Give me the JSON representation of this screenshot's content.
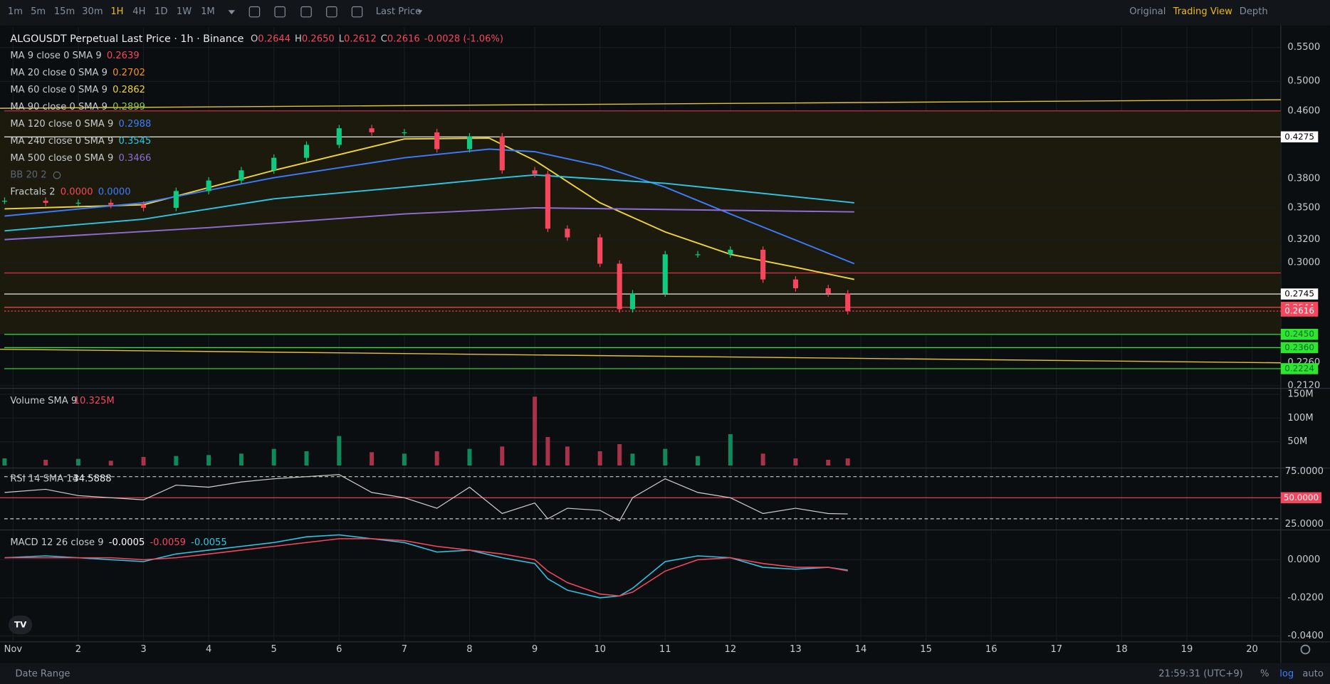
{
  "toolbar": {
    "intervals": [
      "1m",
      "5m",
      "15m",
      "30m",
      "1H",
      "4H",
      "1D",
      "1W",
      "1M"
    ],
    "active_interval": 4,
    "price_type": "Last Price",
    "views": [
      "Original",
      "Trading View",
      "Depth"
    ],
    "active_view": 1
  },
  "legend": {
    "title": "ALGOUSDT Perpetual Last Price · 1h · Binance",
    "ohlc": [
      {
        "key": "O",
        "value": "0.2644"
      },
      {
        "key": "H",
        "value": "0.2650"
      },
      {
        "key": "L",
        "value": "0.2612"
      },
      {
        "key": "C",
        "value": "0.2616"
      }
    ],
    "change": "-0.0028 (-1.06%)",
    "indicators": [
      {
        "name": "MA 9 close 0 SMA 9",
        "values": [
          "0.2639"
        ],
        "colors": [
          "#f6465d"
        ]
      },
      {
        "name": "MA 20 close 0 SMA 9",
        "values": [
          "0.2702"
        ],
        "colors": [
          "#f7931a"
        ]
      },
      {
        "name": "MA 60 close 0 SMA 9",
        "values": [
          "0.2862"
        ],
        "colors": [
          "#f0d43a"
        ]
      },
      {
        "name": "MA 90 close 0 SMA 9",
        "values": [
          "0.2899"
        ],
        "colors": [
          "#8bc34a"
        ]
      },
      {
        "name": "MA 120 close 0 SMA 9",
        "values": [
          "0.2988"
        ],
        "colors": [
          "#3d7cff"
        ]
      },
      {
        "name": "MA 240 close 0 SMA 9",
        "values": [
          "0.3545"
        ],
        "colors": [
          "#2ec6e6"
        ]
      },
      {
        "name": "MA 500 close 0 SMA 9",
        "values": [
          "0.3466"
        ],
        "colors": [
          "#8e6dd8"
        ]
      },
      {
        "name": "BB 20 2",
        "values": [],
        "colors": []
      },
      {
        "name": "Fractals 2",
        "values": [
          "0.0000",
          "0.0000"
        ],
        "colors": [
          "#f6465d",
          "#3d7cff"
        ]
      }
    ]
  },
  "x_axis": {
    "xlim": [
      0.8,
      20.44
    ],
    "xticks": [
      {
        "value": 1,
        "label": "Nov"
      },
      2,
      3,
      4,
      5,
      6,
      7,
      8,
      9,
      10,
      11,
      12,
      13,
      14,
      15,
      16,
      17,
      18,
      19,
      20
    ]
  },
  "price_pane": {
    "type": "candlestick",
    "log_scale": true,
    "ylim": [
      0.2104,
      0.5825
    ],
    "yticks": [
      {
        "value": 0.55,
        "label": "0.5500"
      },
      {
        "value": 0.5,
        "label": "0.5000"
      },
      {
        "value": 0.46,
        "label": "0.4600"
      },
      {
        "value": 0.38,
        "label": "0.3800"
      },
      {
        "value": 0.35,
        "label": "0.3500"
      },
      {
        "value": 0.32,
        "label": "0.3200"
      },
      {
        "value": 0.3,
        "label": "0.3000"
      },
      {
        "value": 0.212,
        "label": "0.2120"
      }
    ],
    "x": [
      0.87,
      1.5,
      2,
      2.5,
      3,
      3.5,
      4,
      4.5,
      5,
      5.5,
      6,
      6.5,
      7,
      7.5,
      8,
      8.5,
      9,
      9.2,
      9.5,
      10,
      10.3,
      10.5,
      11,
      11.5,
      12,
      12.5,
      13,
      13.5,
      13.8
    ],
    "close": [
      0.357,
      0.355,
      0.355,
      0.353,
      0.35,
      0.367,
      0.378,
      0.389,
      0.403,
      0.418,
      0.438,
      0.433,
      0.433,
      0.413,
      0.428,
      0.389,
      0.385,
      0.33,
      0.322,
      0.299,
      0.263,
      0.275,
      0.307,
      0.307,
      0.311,
      0.286,
      0.279,
      0.275,
      0.2616
    ],
    "up_color": "#0ecb81",
    "down_color": "#f6465d",
    "ma_lines": [
      {
        "color": "#f0d43a",
        "x": [
          0.87,
          3,
          5,
          7,
          8.3,
          9,
          10,
          11,
          12,
          13,
          13.9
        ],
        "values": [
          0.349,
          0.353,
          0.389,
          0.425,
          0.426,
          0.4,
          0.355,
          0.327,
          0.307,
          0.296,
          0.286
        ]
      },
      {
        "color": "#3d7cff",
        "x": [
          0.87,
          3,
          5,
          7,
          8.3,
          9,
          10,
          11,
          12,
          13.9
        ],
        "values": [
          0.342,
          0.355,
          0.381,
          0.403,
          0.413,
          0.41,
          0.394,
          0.371,
          0.344,
          0.299
        ]
      },
      {
        "color": "#2ec6e6",
        "x": [
          0.87,
          3,
          5,
          7,
          8.5,
          9,
          11,
          13.9
        ],
        "values": [
          0.328,
          0.339,
          0.359,
          0.371,
          0.381,
          0.384,
          0.375,
          0.355
        ]
      },
      {
        "color": "#8e6dd8",
        "x": [
          0.87,
          4,
          7,
          9,
          13.9
        ],
        "values": [
          0.32,
          0.331,
          0.344,
          0.35,
          0.346
        ]
      }
    ],
    "levels": [
      {
        "value": 0.46,
        "color": "#d9304a"
      },
      {
        "value": 0.4275,
        "label": "0.4275",
        "color": "#ffffff"
      },
      {
        "value": 0.2913,
        "color": "#d9304a"
      },
      {
        "value": 0.2745,
        "label": "0.2745",
        "color": "#ffffff"
      },
      {
        "value": 0.2644,
        "label": "0.2644",
        "color": "#f6465d"
      },
      {
        "value": 0.2616,
        "label": "0.2616",
        "color": "#f6465d"
      },
      {
        "value": 0.245,
        "label": "0.2450",
        "color": "#2ee62e"
      },
      {
        "value": 0.236,
        "label": "0.2360",
        "color": "#2ee62e"
      },
      {
        "value": 0.2224,
        "label": "0.2224",
        "color": "#2ee62e"
      }
    ],
    "trendlines": [
      {
        "color": "#e6c229",
        "x": [
          0.8,
          20.44
        ],
        "values": [
          0.4634,
          0.4747
        ]
      },
      {
        "color": "#e6c229",
        "x": [
          0.8,
          20.44
        ],
        "values": [
          0.2349,
          0.2261
        ],
        "end_label": "0.2260"
      }
    ]
  },
  "volume_pane": {
    "type": "bar",
    "title": "Volume SMA 9",
    "value_label": "10.325M",
    "ylim": [
      0,
      162.5
    ],
    "yticks": [
      {
        "value": 150,
        "label": "150M"
      },
      {
        "value": 100,
        "label": "100M"
      },
      {
        "value": 50,
        "label": "50M"
      }
    ],
    "values": [
      15,
      12,
      14,
      10,
      18,
      20,
      22,
      25,
      35,
      30,
      62,
      28,
      25,
      30,
      35,
      40,
      145,
      60,
      40,
      30,
      45,
      25,
      35,
      20,
      66,
      25,
      15,
      12,
      15
    ]
  },
  "rsi_pane": {
    "type": "line",
    "title": "RSI 14 SMA 14",
    "value_label": "34.5888",
    "ylim": [
      19.4,
      78.2
    ],
    "yticks": [
      {
        "value": 75,
        "label": "75.0000"
      },
      {
        "value": 50,
        "label": "50.0000"
      },
      {
        "value": 25,
        "label": "25.0000"
      }
    ],
    "bands": [
      70,
      30
    ],
    "color": "#d0d0d0",
    "values": [
      55,
      58,
      52,
      50,
      48,
      62,
      60,
      65,
      68,
      70,
      72,
      55,
      50,
      40,
      60,
      35,
      45,
      30,
      40,
      38,
      28,
      50,
      68,
      55,
      50,
      35,
      40,
      35,
      34.59
    ]
  },
  "macd_pane": {
    "type": "line",
    "title": "MACD 12 26 close 9",
    "value_labels": [
      "-0.0005",
      "-0.0059",
      "-0.0055"
    ],
    "label_colors": [
      "#ffffff",
      "#f6465d",
      "#2ec6e6"
    ],
    "ylim": [
      -0.0431,
      0.0156
    ],
    "yticks": [
      {
        "value": 0,
        "label": "0.0000"
      },
      {
        "value": -0.02,
        "label": "-0.0200"
      },
      {
        "value": -0.04,
        "label": "-0.0400"
      }
    ],
    "series": [
      {
        "color": "#2ec6e6",
        "values": [
          0.001,
          0.002,
          0.001,
          0,
          -0.001,
          0.003,
          0.005,
          0.007,
          0.009,
          0.012,
          0.013,
          0.011,
          0.009,
          0.004,
          0.005,
          0.001,
          -0.002,
          -0.01,
          -0.016,
          -0.02,
          -0.019,
          -0.015,
          -0.001,
          0.002,
          0.001,
          -0.004,
          -0.005,
          -0.004,
          -0.0055
        ]
      },
      {
        "color": "#f6465d",
        "values": [
          0.001,
          0.001,
          0.001,
          0.001,
          0,
          0.001,
          0.003,
          0.005,
          0.007,
          0.009,
          0.011,
          0.011,
          0.01,
          0.007,
          0.005,
          0.003,
          0,
          -0.006,
          -0.012,
          -0.018,
          -0.019,
          -0.017,
          -0.006,
          0,
          0.001,
          -0.002,
          -0.004,
          -0.004,
          -0.0059
        ]
      }
    ]
  },
  "footer": {
    "date_range": "Date Range",
    "clock": "21:59:31 (UTC+9)",
    "options": [
      "%",
      "log",
      "auto"
    ],
    "active_option": 1
  }
}
